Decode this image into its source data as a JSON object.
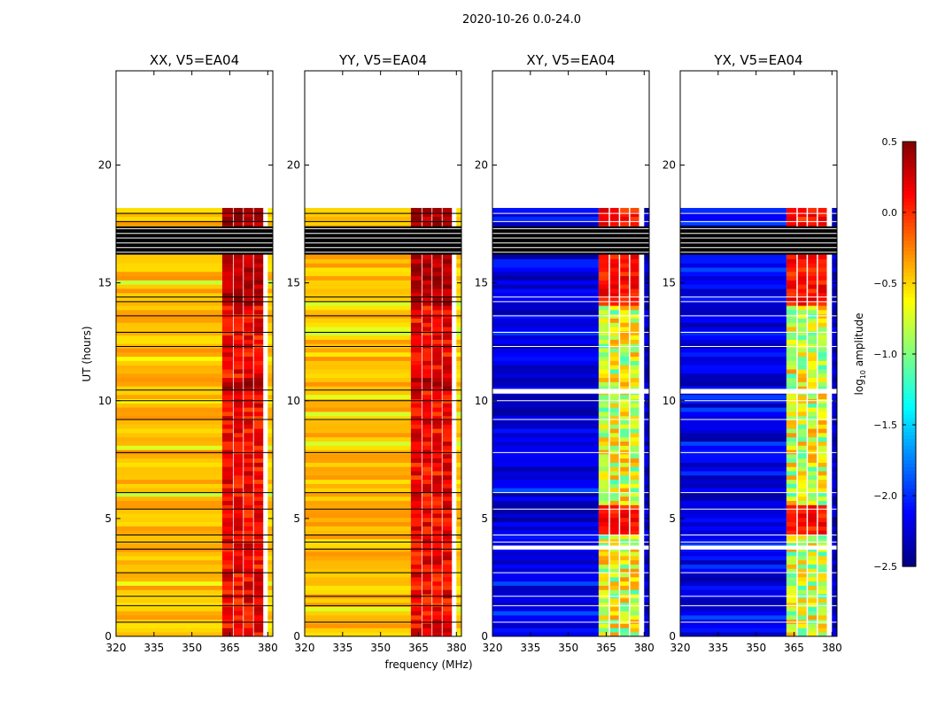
{
  "figure": {
    "suptitle": "2020-10-26 0.0-24.0",
    "xlabel": "frequency (MHz)",
    "ylabel": "UT (hours)",
    "colorbar_label": "log",
    "colorbar_label_sub": "10",
    "colorbar_label_rest": " amplitude"
  },
  "chart_data": {
    "type": "heatmap",
    "panels": [
      {
        "title": "XX, V5=EA04",
        "kind": "auto"
      },
      {
        "title": "YY, V5=EA04",
        "kind": "auto"
      },
      {
        "title": "XY, V5=EA04",
        "kind": "cross"
      },
      {
        "title": "YX, V5=EA04",
        "kind": "cross"
      }
    ],
    "xlim": [
      320,
      382
    ],
    "ylim": [
      0,
      24
    ],
    "xticks": [
      320,
      335,
      350,
      365,
      380
    ],
    "yticks": [
      0,
      5,
      10,
      15,
      20
    ],
    "colorbar": {
      "min": -2.5,
      "max": 0.5,
      "ticks": [
        0.5,
        0.0,
        -0.5,
        -1.0,
        -1.5,
        -2.0,
        -2.5
      ],
      "tick_labels": [
        "0.5",
        "0.0",
        "−0.5",
        "−1.0",
        "−1.5",
        "−2.0",
        "−2.5"
      ]
    },
    "data_time_range_hours": [
      0,
      18
    ],
    "flagged_black_band_hours": [
      16.2,
      17.4
    ],
    "bright_channel_range_mhz": [
      362,
      380
    ],
    "bright_subbands_mhz": [
      [
        362,
        366.5
      ],
      [
        366.5,
        370.5
      ],
      [
        370.5,
        374.5
      ],
      [
        374.5,
        378.5
      ]
    ]
  }
}
